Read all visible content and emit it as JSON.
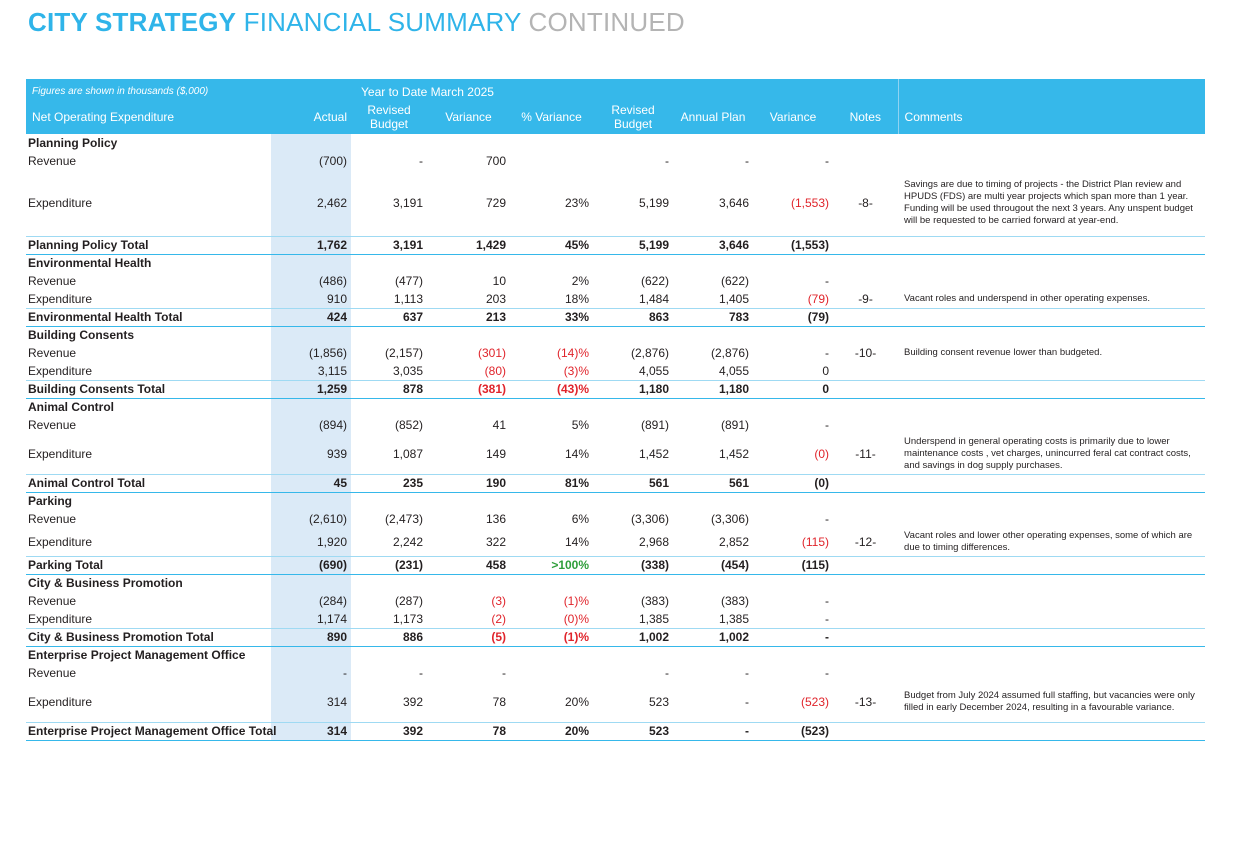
{
  "header": {
    "title_bold": "CITY STRATEGY",
    "title_mid": "FINANCIAL SUMMARY",
    "title_light": "CONTINUED"
  },
  "table": {
    "figures_note": "Figures are shown in thousands ($,000)",
    "ytd_label": "Year to Date March 2025",
    "columns": {
      "label": "Net Operating Expenditure",
      "actual": "Actual",
      "revised_budget": "Revised Budget",
      "variance": "Variance",
      "pct_variance": "% Variance",
      "revised_budget_full": "Revised Budget",
      "annual_plan": "Annual Plan",
      "variance_full": "Variance",
      "notes": "Notes",
      "comments": "Comments"
    },
    "colors": {
      "header_bg": "#36b8ea",
      "actual_bg": "#dbeaf7",
      "negative": "#e0242b",
      "positive": "#2e9e3a"
    },
    "sections": [
      {
        "title": "Planning Policy",
        "rows": [
          {
            "label": "Revenue",
            "actual": "(700)",
            "revised_budget": "-",
            "variance": "700",
            "pct_variance": "",
            "revised_budget_full": "-",
            "annual_plan": "-",
            "variance_full": "-",
            "notes": "",
            "comment": ""
          },
          {
            "label": "Expenditure",
            "actual": "2,462",
            "revised_budget": "3,191",
            "variance": "729",
            "pct_variance": "23%",
            "revised_budget_full": "5,199",
            "annual_plan": "3,646",
            "variance_full": "(1,553)",
            "notes": "-8-",
            "comment": "Savings are due to timing of projects - the District Plan review and HPUDS (FDS) are multi year projects which span more than 1 year. Funding will be used througout the next 3 years. Any unspent budget will be requested to be carried forward at year-end."
          }
        ],
        "total": {
          "label": "Planning Policy Total",
          "actual": "1,762",
          "revised_budget": "3,191",
          "variance": "1,429",
          "pct_variance": "45%",
          "revised_budget_full": "5,199",
          "annual_plan": "3,646",
          "variance_full": "(1,553)"
        }
      },
      {
        "title": "Environmental Health",
        "rows": [
          {
            "label": "Revenue",
            "actual": "(486)",
            "revised_budget": "(477)",
            "variance": "10",
            "pct_variance": "2%",
            "revised_budget_full": "(622)",
            "annual_plan": "(622)",
            "variance_full": "-",
            "notes": "",
            "comment": ""
          },
          {
            "label": "Expenditure",
            "actual": "910",
            "revised_budget": "1,113",
            "variance": "203",
            "pct_variance": "18%",
            "revised_budget_full": "1,484",
            "annual_plan": "1,405",
            "variance_full": "(79)",
            "notes": "-9-",
            "comment": "Vacant roles and underspend in other operating expenses."
          }
        ],
        "total": {
          "label": "Environmental Health Total",
          "actual": "424",
          "revised_budget": "637",
          "variance": "213",
          "pct_variance": "33%",
          "revised_budget_full": "863",
          "annual_plan": "783",
          "variance_full": "(79)"
        }
      },
      {
        "title": "Building Consents",
        "rows": [
          {
            "label": "Revenue",
            "actual": "(1,856)",
            "revised_budget": "(2,157)",
            "variance": "(301)",
            "pct_variance": "(14)%",
            "revised_budget_full": "(2,876)",
            "annual_plan": "(2,876)",
            "variance_full": "-",
            "notes": "-10-",
            "comment": "Building consent revenue lower than budgeted."
          },
          {
            "label": "Expenditure",
            "actual": "3,115",
            "revised_budget": "3,035",
            "variance": "(80)",
            "pct_variance": "(3)%",
            "revised_budget_full": "4,055",
            "annual_plan": "4,055",
            "variance_full": "0",
            "notes": "",
            "comment": ""
          }
        ],
        "total": {
          "label": "Building Consents Total",
          "actual": "1,259",
          "revised_budget": "878",
          "variance": "(381)",
          "pct_variance": "(43)%",
          "revised_budget_full": "1,180",
          "annual_plan": "1,180",
          "variance_full": "0"
        }
      },
      {
        "title": "Animal Control",
        "rows": [
          {
            "label": "Revenue",
            "actual": "(894)",
            "revised_budget": "(852)",
            "variance": "41",
            "pct_variance": "5%",
            "revised_budget_full": "(891)",
            "annual_plan": "(891)",
            "variance_full": "-",
            "notes": "",
            "comment": ""
          },
          {
            "label": "Expenditure",
            "actual": "939",
            "revised_budget": "1,087",
            "variance": "149",
            "pct_variance": "14%",
            "revised_budget_full": "1,452",
            "annual_plan": "1,452",
            "variance_full": "(0)",
            "notes": "-11-",
            "comment": "Underspend in general operating costs is primarily due to lower maintenance costs , vet charges, unincurred feral cat contract costs, and savings in dog supply purchases."
          }
        ],
        "total": {
          "label": "Animal Control Total",
          "actual": "45",
          "revised_budget": "235",
          "variance": "190",
          "pct_variance": "81%",
          "revised_budget_full": "561",
          "annual_plan": "561",
          "variance_full": "(0)"
        }
      },
      {
        "title": "Parking",
        "rows": [
          {
            "label": "Revenue",
            "actual": "(2,610)",
            "revised_budget": "(2,473)",
            "variance": "136",
            "pct_variance": "6%",
            "revised_budget_full": "(3,306)",
            "annual_plan": "(3,306)",
            "variance_full": "-",
            "notes": "",
            "comment": ""
          },
          {
            "label": "Expenditure",
            "actual": "1,920",
            "revised_budget": "2,242",
            "variance": "322",
            "pct_variance": "14%",
            "revised_budget_full": "2,968",
            "annual_plan": "2,852",
            "variance_full": "(115)",
            "notes": "-12-",
            "comment": "Vacant roles and lower other operating expenses, some of which are due to timing differences."
          }
        ],
        "total": {
          "label": "Parking Total",
          "actual": "(690)",
          "revised_budget": "(231)",
          "variance": "458",
          "pct_variance": ">100%",
          "revised_budget_full": "(338)",
          "annual_plan": "(454)",
          "variance_full": "(115)"
        }
      },
      {
        "title": "City & Business Promotion",
        "rows": [
          {
            "label": "Revenue",
            "actual": "(284)",
            "revised_budget": "(287)",
            "variance": "(3)",
            "pct_variance": "(1)%",
            "revised_budget_full": "(383)",
            "annual_plan": "(383)",
            "variance_full": "-",
            "notes": "",
            "comment": ""
          },
          {
            "label": "Expenditure",
            "actual": "1,174",
            "revised_budget": "1,173",
            "variance": "(2)",
            "pct_variance": "(0)%",
            "revised_budget_full": "1,385",
            "annual_plan": "1,385",
            "variance_full": "-",
            "notes": "",
            "comment": ""
          }
        ],
        "total": {
          "label": "City & Business Promotion Total",
          "actual": "890",
          "revised_budget": "886",
          "variance": "(5)",
          "pct_variance": "(1)%",
          "revised_budget_full": "1,002",
          "annual_plan": "1,002",
          "variance_full": "-"
        }
      },
      {
        "title": "Enterprise Project Management Office",
        "rows": [
          {
            "label": "Revenue",
            "actual": "-",
            "revised_budget": "-",
            "variance": "-",
            "pct_variance": "",
            "revised_budget_full": "-",
            "annual_plan": "-",
            "variance_full": "-",
            "notes": "",
            "comment": ""
          },
          {
            "label": "Expenditure",
            "actual": "314",
            "revised_budget": "392",
            "variance": "78",
            "pct_variance": "20%",
            "revised_budget_full": "523",
            "annual_plan": "-",
            "variance_full": "(523)",
            "notes": "-13-",
            "comment": "Budget from July 2024 assumed full staffing, but vacancies were only filled in early December 2024, resulting in a favourable variance."
          }
        ],
        "total": {
          "label": "Enterprise Project Management Office Total",
          "actual": "314",
          "revised_budget": "392",
          "variance": "78",
          "pct_variance": "20%",
          "revised_budget_full": "523",
          "annual_plan": "-",
          "variance_full": "(523)"
        }
      }
    ]
  }
}
